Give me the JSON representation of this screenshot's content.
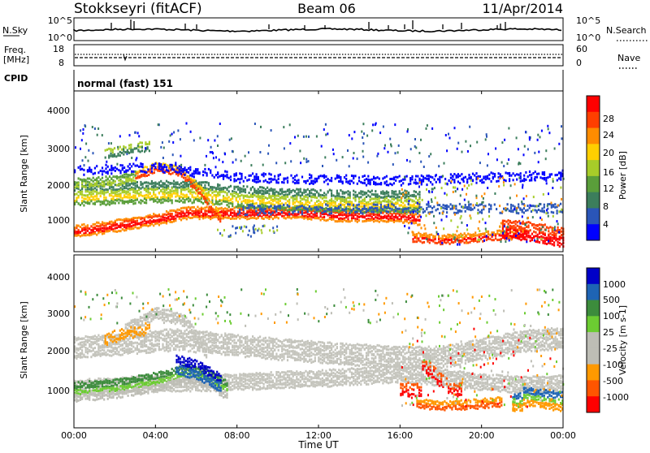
{
  "header": {
    "station": "Stokkseyri (fitACF)",
    "beam": "Beam 06",
    "date": "11/Apr/2014"
  },
  "colors": {
    "power_scale": [
      "#0000ff",
      "#2a55b8",
      "#3c7e5c",
      "#5a9e3a",
      "#a7cc29",
      "#ffcf00",
      "#ff8c00",
      "#ff3f00",
      "#ff0000"
    ],
    "velocity_scale": [
      "#0000c8",
      "#1e64b4",
      "#3c8c3c",
      "#6ccc32",
      "#bdbdb5",
      "#bdbdb5",
      "#ff9900",
      "#ff5500",
      "#ff0000"
    ],
    "ground_scatter": "#c4c4bc"
  },
  "chart_data": [
    {
      "type": "line",
      "panel": "noise",
      "left_label": "N.Sky",
      "right_label": "N.Search",
      "left_ticks": [
        "10^5",
        "10^0"
      ],
      "right_ticks": [
        "10^5",
        "10^0"
      ],
      "ylim": [
        0,
        5
      ],
      "scale": "log10"
    },
    {
      "type": "line",
      "panel": "frequency",
      "left_label": "Freq.",
      "left_unit": "[MHz]",
      "right_label": "Nave",
      "left_ticks": [
        "18",
        "8"
      ],
      "right_ticks": [
        "60",
        "0"
      ],
      "ylim": [
        8,
        18
      ]
    },
    {
      "type": "table",
      "panel": "cpid",
      "label": "CPID",
      "value": "normal (fast) 151"
    },
    {
      "type": "heatmap",
      "panel": "power",
      "ylabel": "Slant Range [km]",
      "ylim": [
        200,
        4600
      ],
      "yticks": [
        "1000",
        "2000",
        "3000",
        "4000"
      ],
      "xlim": [
        0,
        24
      ],
      "colorbar_label": "Power [dB]",
      "colorbar_ticks": [
        "28",
        "24",
        "20",
        "16",
        "12",
        "8",
        "4"
      ],
      "clim": [
        0,
        32
      ]
    },
    {
      "type": "heatmap",
      "panel": "velocity",
      "ylabel": "Slant Range [km]",
      "ylim": [
        200,
        4600
      ],
      "yticks": [
        "1000",
        "2000",
        "3000",
        "4000"
      ],
      "xlabel": "Time UT",
      "xticks": [
        "00:00",
        "04:00",
        "08:00",
        "12:00",
        "16:00",
        "20:00",
        "00:00"
      ],
      "xlim": [
        0,
        24
      ],
      "colorbar_label": "Velocity [m s-1]",
      "colorbar_ticks": [
        "1000",
        "500",
        "100",
        "25",
        "-25",
        "-100",
        "-500",
        "-1000"
      ]
    }
  ]
}
